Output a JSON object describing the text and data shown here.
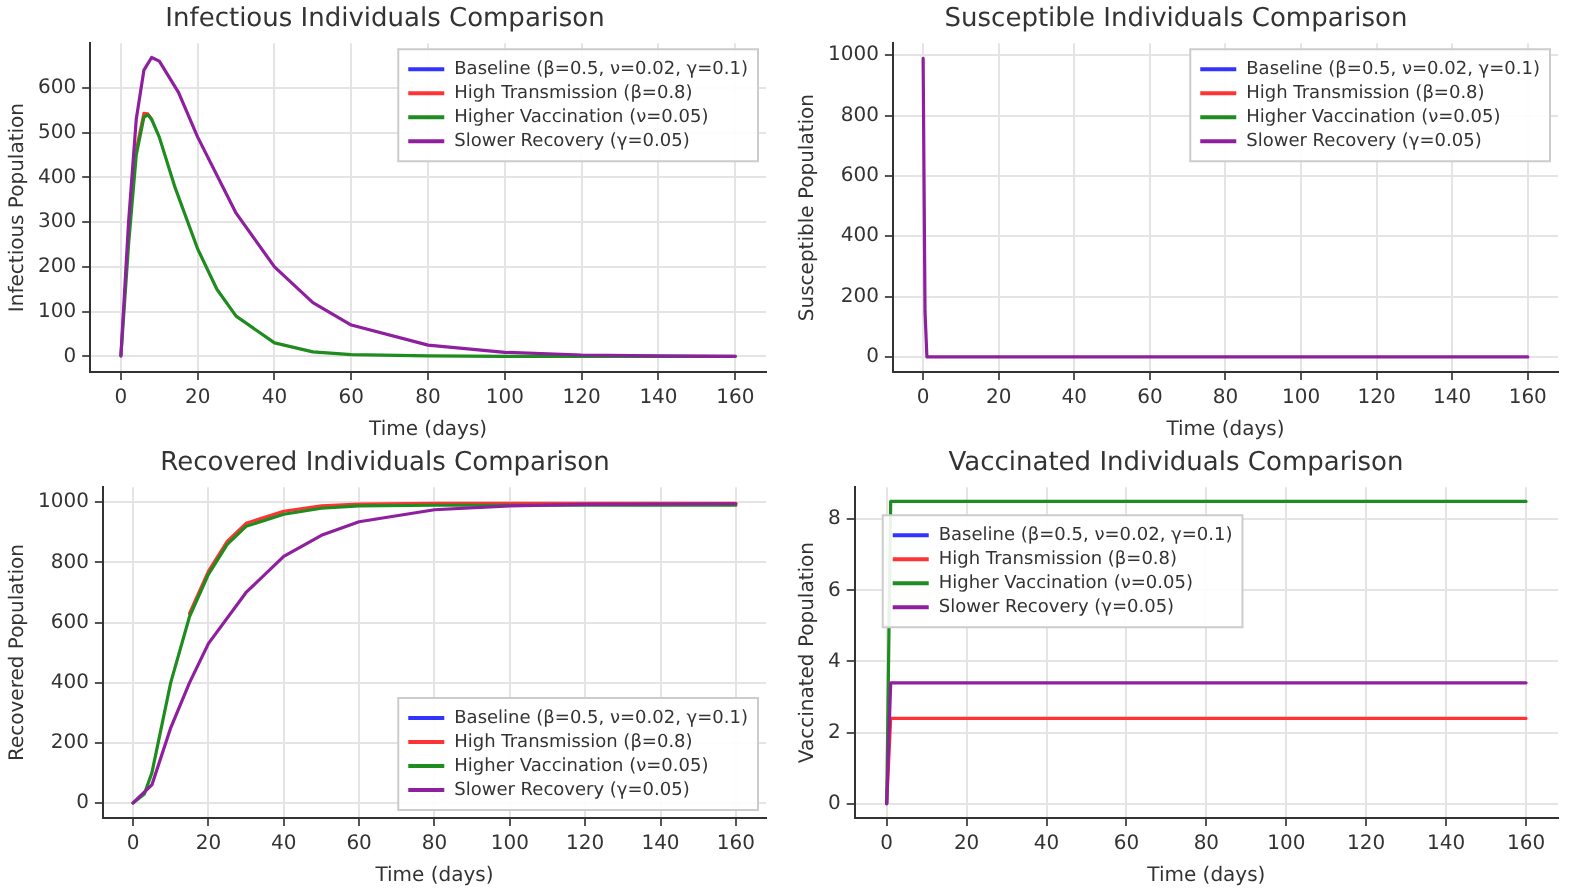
{
  "chart_data": [
    {
      "type": "line",
      "title": "Infectious Individuals Comparison",
      "xlabel": "Time (days)",
      "ylabel": "Infectious Population",
      "xlim": [
        -8,
        168
      ],
      "xticks": [
        0,
        20,
        40,
        60,
        80,
        100,
        120,
        140,
        160
      ],
      "ylim": [
        -35,
        700
      ],
      "yticks": [
        0,
        100,
        200,
        300,
        400,
        500,
        600
      ],
      "grid": true,
      "legend": "top right",
      "marker": "none",
      "line_style": "solid",
      "series": [
        {
          "name": "Baseline (β=0.5, ν=0.02, γ=0.1)",
          "color": "#3333ff"
        },
        {
          "name": "High Transmission (β=0.8)",
          "color": "#ff3333",
          "x": [
            4,
            6,
            7,
            8
          ],
          "values": [
            460,
            543,
            542,
            530
          ]
        },
        {
          "name": "Higher Vaccination (ν=0.05)",
          "color": "#1e8c1e",
          "x": [
            0,
            2,
            4,
            6,
            7,
            8,
            10,
            14,
            20,
            25,
            30,
            40,
            50,
            60,
            80,
            100,
            160
          ],
          "values": [
            1,
            250,
            450,
            535,
            540,
            530,
            490,
            380,
            240,
            150,
            90,
            30,
            10,
            4,
            1,
            0,
            0
          ]
        },
        {
          "name": "Slower Recovery (γ=0.05)",
          "color": "#8e1f9e",
          "x": [
            0,
            2,
            4,
            6,
            8,
            10,
            15,
            20,
            30,
            40,
            50,
            60,
            80,
            100,
            120,
            140,
            160
          ],
          "values": [
            1,
            300,
            530,
            640,
            668,
            660,
            590,
            490,
            320,
            200,
            120,
            70,
            25,
            9,
            3,
            1,
            0
          ]
        }
      ]
    },
    {
      "type": "line",
      "title": "Susceptible Individuals Comparison",
      "xlabel": "Time (days)",
      "ylabel": "Susceptible Population",
      "xlim": [
        -8,
        168
      ],
      "xticks": [
        0,
        20,
        40,
        60,
        80,
        100,
        120,
        140,
        160
      ],
      "ylim": [
        -50,
        1040
      ],
      "yticks": [
        0,
        200,
        400,
        600,
        800,
        1000
      ],
      "grid": true,
      "legend": "top right",
      "marker": "none",
      "line_style": "solid",
      "series": [
        {
          "name": "Baseline (β=0.5, ν=0.02, γ=0.1)",
          "color": "#3333ff"
        },
        {
          "name": "High Transmission (β=0.8)",
          "color": "#ff3333"
        },
        {
          "name": "Higher Vaccination (ν=0.05)",
          "color": "#1e8c1e"
        },
        {
          "name": "Slower Recovery (γ=0.05)",
          "color": "#8e1f9e",
          "x": [
            0,
            0.5,
            1,
            160
          ],
          "values": [
            990,
            150,
            0,
            0
          ]
        }
      ]
    },
    {
      "type": "line",
      "title": "Recovered Individuals Comparison",
      "xlabel": "Time (days)",
      "ylabel": "Recovered Population",
      "xlim": [
        -8,
        168
      ],
      "xticks": [
        0,
        20,
        40,
        60,
        80,
        100,
        120,
        140,
        160
      ],
      "ylim": [
        -50,
        1050
      ],
      "yticks": [
        0,
        200,
        400,
        600,
        800,
        1000
      ],
      "grid": true,
      "legend": "bottom right",
      "marker": "none",
      "line_style": "solid",
      "series": [
        {
          "name": "Baseline (β=0.5, ν=0.02, γ=0.1)",
          "color": "#3333ff"
        },
        {
          "name": "High Transmission (β=0.8)",
          "color": "#ff3333",
          "x": [
            15,
            20,
            25,
            30,
            40,
            50,
            60,
            80,
            160
          ],
          "values": [
            630,
            770,
            870,
            930,
            970,
            988,
            994,
            996,
            996
          ]
        },
        {
          "name": "Higher Vaccination (ν=0.05)",
          "color": "#1e8c1e",
          "x": [
            0,
            3,
            5,
            10,
            15,
            20,
            25,
            30,
            40,
            50,
            60,
            80,
            160
          ],
          "values": [
            0,
            30,
            100,
            400,
            620,
            760,
            860,
            920,
            960,
            980,
            988,
            990,
            990
          ]
        },
        {
          "name": "Slower Recovery (γ=0.05)",
          "color": "#8e1f9e",
          "x": [
            0,
            5,
            10,
            15,
            20,
            30,
            40,
            50,
            60,
            80,
            100,
            120,
            160
          ],
          "values": [
            0,
            60,
            250,
            400,
            530,
            700,
            820,
            890,
            935,
            975,
            988,
            993,
            995
          ]
        }
      ]
    },
    {
      "type": "line",
      "title": "Vaccinated Individuals Comparison",
      "xlabel": "Time (days)",
      "ylabel": "Vaccinated Population",
      "xlim": [
        -8,
        168
      ],
      "xticks": [
        0,
        20,
        40,
        60,
        80,
        100,
        120,
        140,
        160
      ],
      "ylim": [
        -0.4,
        8.9
      ],
      "yticks": [
        0,
        2,
        4,
        6,
        8
      ],
      "grid": true,
      "legend": "top left",
      "marker": "none",
      "line_style": "solid",
      "series": [
        {
          "name": "Baseline (β=0.5, ν=0.02, γ=0.1)",
          "color": "#3333ff"
        },
        {
          "name": "High Transmission (β=0.8)",
          "color": "#ff3333",
          "x": [
            0,
            1,
            160
          ],
          "values": [
            0,
            2.4,
            2.4
          ]
        },
        {
          "name": "Higher Vaccination (ν=0.05)",
          "color": "#1e8c1e",
          "x": [
            0,
            1,
            160
          ],
          "values": [
            0,
            8.5,
            8.5
          ]
        },
        {
          "name": "Slower Recovery (γ=0.05)",
          "color": "#8e1f9e",
          "x": [
            0,
            1,
            160
          ],
          "values": [
            0,
            3.4,
            3.4
          ]
        }
      ]
    }
  ]
}
